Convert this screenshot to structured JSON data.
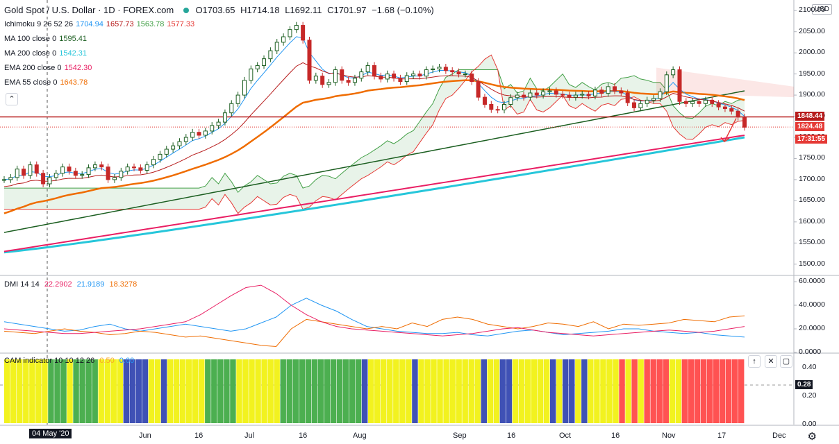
{
  "header": {
    "symbol": "Gold Spot / U.S. Dollar · 1D · FOREX.com",
    "ohlc": {
      "o": "O1703.65",
      "h": "H1714.18",
      "l": "L1692.11",
      "c": "C1701.97",
      "chg": "−1.68 (−0.10%)"
    }
  },
  "studies": [
    {
      "name": "Ichimoku 9 26 52 26",
      "values": [
        "1704.94",
        "1657.73",
        "1563.78",
        "1577.33"
      ],
      "colors": [
        "#2196f3",
        "#b71c1c",
        "#43a047",
        "#e53935"
      ]
    },
    {
      "name": "MA 100 close 0",
      "values": [
        "1595.41"
      ],
      "colors": [
        "#1b5e20"
      ]
    },
    {
      "name": "MA 200 close 0",
      "values": [
        "1542.31"
      ],
      "colors": [
        "#26c6da"
      ]
    },
    {
      "name": "EMA 200 close 0",
      "values": [
        "1542.30"
      ],
      "colors": [
        "#e91e63"
      ]
    },
    {
      "name": "EMA 55 close 0",
      "values": [
        "1643.78"
      ],
      "colors": [
        "#ef6c00"
      ]
    }
  ],
  "dmi_legend": {
    "name": "DMI 14 14",
    "values": [
      "22.2902",
      "21.9189",
      "18.3278"
    ],
    "colors": [
      "#e91e63",
      "#2196f3",
      "#ef6c00"
    ]
  },
  "cam_legend": {
    "name": "CAM indicator 10 10 12 26",
    "values": [
      "0.50",
      "0.00"
    ],
    "colors": [
      "#f9a825",
      "#2196f3"
    ]
  },
  "price_scale": {
    "currency": "USD",
    "ticks": [
      "2100.00",
      "2050.00",
      "2000.00",
      "1950.00",
      "1900.00",
      "1850.00",
      "1800.00",
      "1750.00",
      "1700.00",
      "1650.00",
      "1600.00",
      "1550.00",
      "1500.00"
    ],
    "tags": [
      {
        "label": "1848.44",
        "color": "#b71c1c"
      },
      {
        "label": "1824.48",
        "color": "#e53935"
      },
      {
        "label": "17:31:55",
        "color": "#e53935"
      }
    ]
  },
  "dmi_scale": {
    "ticks": [
      "60.0000",
      "40.0000",
      "20.0000",
      "0.0000"
    ]
  },
  "cam_scale": {
    "ticks": [
      "0.40",
      "0.20",
      "0.00"
    ],
    "current": "0.28"
  },
  "time_axis": {
    "labels": [
      "04 May '20",
      "Jun",
      "16",
      "Jul",
      "16",
      "Aug",
      "Sep",
      "16",
      "Oct",
      "16",
      "Nov",
      "17",
      "Dec"
    ]
  },
  "chart_data": [
    {
      "type": "candlestick",
      "title": "Gold Spot / U.S. Dollar · 1D · FOREX.com",
      "ylabel": "USD",
      "ylim": [
        1475,
        2125
      ],
      "ohlc_sample": [
        [
          1703.65,
          1714.18,
          1692.11,
          1701.97
        ]
      ],
      "closes": [
        1700,
        1705,
        1725,
        1710,
        1735,
        1715,
        1690,
        1705,
        1715,
        1730,
        1720,
        1710,
        1712,
        1728,
        1735,
        1730,
        1700,
        1705,
        1720,
        1730,
        1728,
        1722,
        1735,
        1748,
        1760,
        1772,
        1780,
        1790,
        1800,
        1812,
        1805,
        1815,
        1828,
        1836,
        1858,
        1880,
        1900,
        1935,
        1962,
        1970,
        1986,
        2005,
        2025,
        2038,
        2055,
        2065,
        2030,
        1935,
        1945,
        1925,
        1930,
        1960,
        1935,
        1930,
        1940,
        1955,
        1970,
        1945,
        1938,
        1950,
        1940,
        1932,
        1946,
        1950,
        1945,
        1960,
        1962,
        1966,
        1958,
        1955,
        1950,
        1950,
        1932,
        1895,
        1878,
        1866,
        1865,
        1878,
        1894,
        1900,
        1895,
        1905,
        1900,
        1908,
        1910,
        1902,
        1900,
        1895,
        1900,
        1902,
        1898,
        1912,
        1904,
        1920,
        1910,
        1905,
        1882,
        1870,
        1880,
        1888,
        1892,
        1908,
        1948,
        1960,
        1885,
        1880,
        1885,
        1880,
        1888,
        1880,
        1872,
        1868,
        1862,
        1848,
        1824
      ],
      "horizontal_levels": [
        1848.44
      ],
      "series": [
        {
          "name": "EMA 55 close 0",
          "last": 1643.78
        },
        {
          "name": "MA 100 close 0",
          "last": 1595.41
        },
        {
          "name": "MA 200 close 0",
          "last": 1542.31
        },
        {
          "name": "EMA 200 close 0",
          "last": 1542.3
        }
      ]
    },
    {
      "type": "line",
      "title": "DMI 14 14",
      "ylim": [
        0,
        60
      ],
      "series": [
        {
          "name": "+DI",
          "values": [
            26,
            24,
            22,
            20,
            18,
            19,
            22,
            24,
            20,
            18,
            20,
            22,
            24,
            22,
            20,
            18,
            20,
            25,
            30,
            40,
            46,
            40,
            35,
            28,
            22,
            20,
            18,
            17,
            16,
            16,
            17,
            15,
            14,
            16,
            18,
            19,
            17,
            15,
            16,
            17,
            18,
            20,
            20,
            18,
            17,
            16,
            17,
            15,
            14,
            13
          ]
        },
        {
          "name": "-DI",
          "values": [
            18,
            17,
            16,
            18,
            20,
            18,
            17,
            15,
            16,
            18,
            17,
            15,
            13,
            14,
            12,
            10,
            8,
            6,
            5,
            20,
            28,
            26,
            24,
            22,
            20,
            22,
            20,
            25,
            22,
            28,
            30,
            28,
            24,
            22,
            20,
            22,
            25,
            24,
            22,
            26,
            20,
            24,
            23,
            24,
            25,
            28,
            27,
            26,
            30,
            31
          ]
        },
        {
          "name": "ADX",
          "values": [
            20,
            19,
            18,
            17,
            16,
            16,
            17,
            18,
            19,
            20,
            22,
            24,
            26,
            32,
            40,
            48,
            55,
            57,
            50,
            40,
            32,
            26,
            22,
            20,
            19,
            18,
            17,
            16,
            15,
            14,
            15,
            16,
            18,
            20,
            21,
            19,
            17,
            16,
            15,
            14,
            15,
            16,
            17,
            18,
            19,
            18,
            17,
            18,
            20,
            22
          ]
        }
      ]
    },
    {
      "type": "bar",
      "title": "CAM indicator 10 10 12 26",
      "ylim": [
        0,
        0.5
      ],
      "current": 0.28
    }
  ]
}
